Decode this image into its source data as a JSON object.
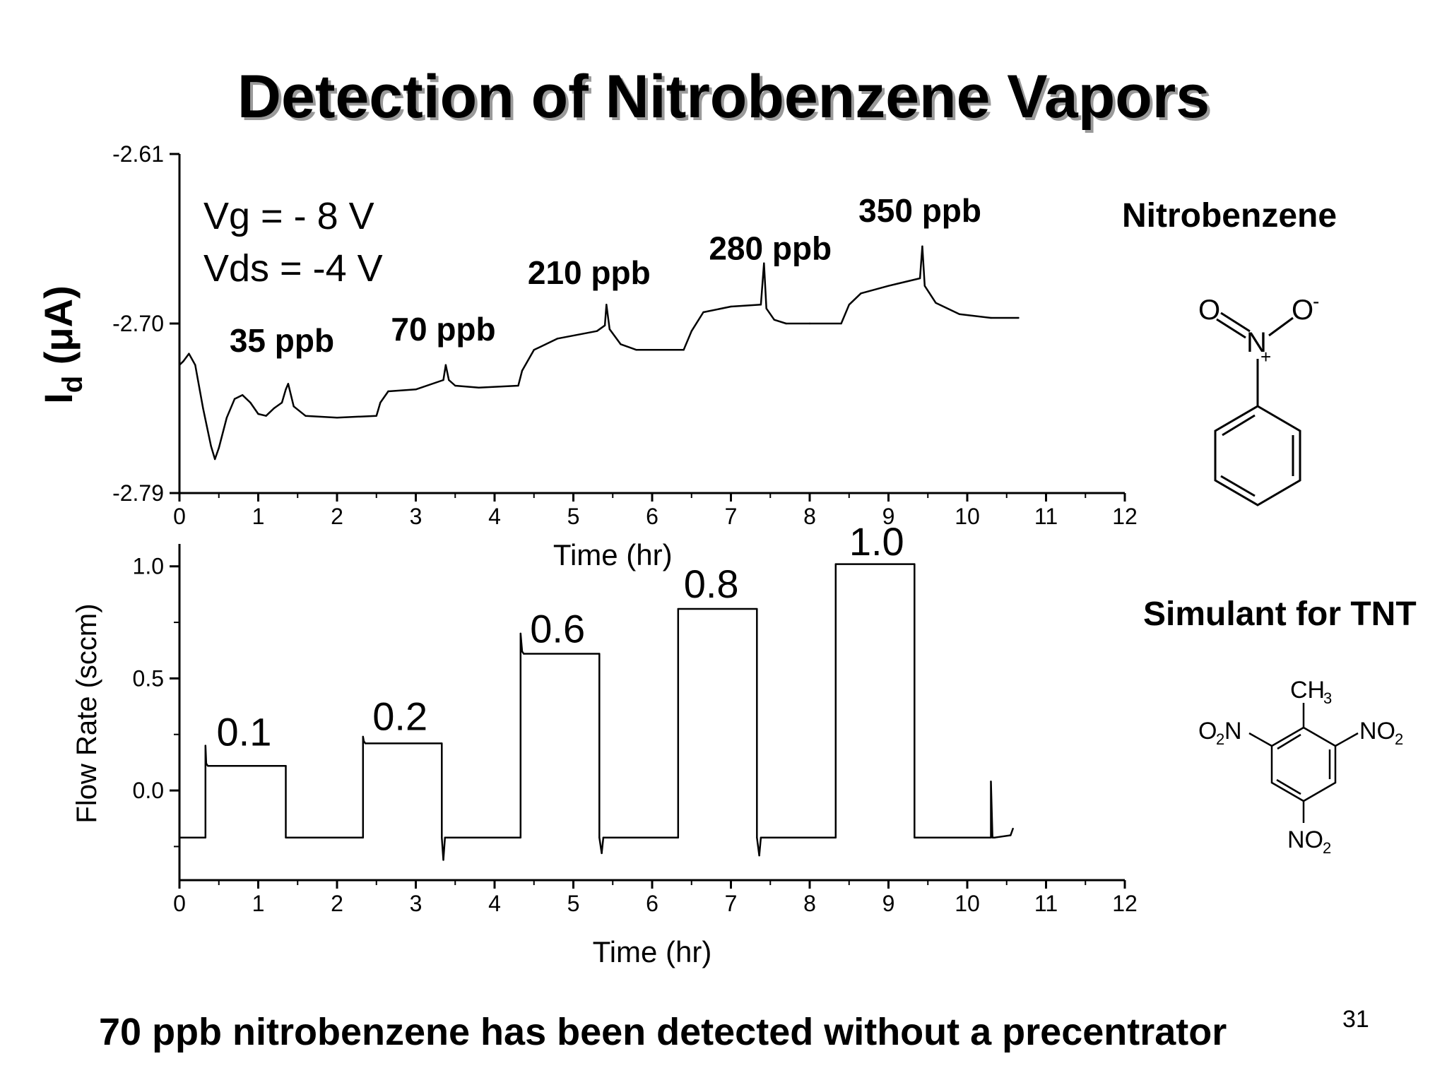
{
  "title": "Detection of Nitrobenzene Vapors",
  "footer_text": "70 ppb nitrobenzene has been detected without a precentrator",
  "page_number": "31",
  "molecules": [
    {
      "label": "Nitrobenzene",
      "icon": "nitrobenzene-structure-icon"
    },
    {
      "label": "Simulant for TNT",
      "icon": "tnt-structure-icon"
    }
  ],
  "chart_data": [
    {
      "type": "line",
      "xlabel": "Time (hr)",
      "ylabel": "I",
      "ylabel_subscript": "d",
      "ylabel_unit": "(μA)",
      "xlim": [
        0,
        12
      ],
      "ylim": [
        -2.79,
        -2.61
      ],
      "xticks": [
        "0",
        "1",
        "2",
        "3",
        "4",
        "5",
        "6",
        "7",
        "8",
        "9",
        "10",
        "11",
        "12"
      ],
      "yticks": [
        "-2.79",
        "-2.70",
        "-2.61"
      ],
      "ytick_values": [
        -2.79,
        -2.7,
        -2.61
      ],
      "conditions": [
        "Vg = - 8 V",
        "Vds = -4 V"
      ],
      "annotations": [
        {
          "text": "35 ppb",
          "x": 1.3,
          "y": -2.715
        },
        {
          "text": "70 ppb",
          "x": 3.35,
          "y": -2.709
        },
        {
          "text": "210 ppb",
          "x": 5.2,
          "y": -2.679
        },
        {
          "text": "280 ppb",
          "x": 7.5,
          "y": -2.666
        },
        {
          "text": "350 ppb",
          "x": 9.4,
          "y": -2.646
        }
      ],
      "series": [
        {
          "x": [
            0,
            0.05,
            0.12,
            0.2,
            0.3,
            0.4,
            0.45,
            0.5,
            0.6,
            0.7,
            0.8,
            0.9,
            1.0,
            1.1,
            1.2,
            1.3,
            1.35,
            1.38,
            1.45,
            1.6,
            2.0,
            2.5,
            2.55,
            2.65,
            3.0,
            3.35,
            3.38,
            3.42,
            3.5,
            3.8,
            4.3,
            4.35,
            4.5,
            4.8,
            5.3,
            5.4,
            5.42,
            5.46,
            5.6,
            5.8,
            6.0,
            6.4,
            6.5,
            6.65,
            7.0,
            7.38,
            7.42,
            7.45,
            7.55,
            7.7,
            8.0,
            8.4,
            8.5,
            8.65,
            9.0,
            9.4,
            9.43,
            9.46,
            9.6,
            9.9,
            10.3,
            10.65
          ],
          "y": [
            -2.722,
            -2.72,
            -2.716,
            -2.722,
            -2.745,
            -2.765,
            -2.772,
            -2.766,
            -2.75,
            -2.74,
            -2.738,
            -2.742,
            -2.748,
            -2.749,
            -2.745,
            -2.742,
            -2.735,
            -2.732,
            -2.744,
            -2.749,
            -2.75,
            -2.749,
            -2.742,
            -2.736,
            -2.735,
            -2.73,
            -2.722,
            -2.73,
            -2.733,
            -2.734,
            -2.733,
            -2.725,
            -2.714,
            -2.708,
            -2.704,
            -2.701,
            -2.69,
            -2.703,
            -2.711,
            -2.714,
            -2.714,
            -2.714,
            -2.704,
            -2.694,
            -2.691,
            -2.69,
            -2.668,
            -2.692,
            -2.698,
            -2.7,
            -2.7,
            -2.7,
            -2.69,
            -2.684,
            -2.68,
            -2.676,
            -2.659,
            -2.68,
            -2.689,
            -2.695,
            -2.697,
            -2.697
          ]
        }
      ]
    },
    {
      "type": "line",
      "xlabel": "Time (hr)",
      "ylabel": "Flow Rate (sccm)",
      "xlim": [
        0,
        12
      ],
      "ylim": [
        -0.4,
        1.1
      ],
      "xticks": [
        "0",
        "1",
        "2",
        "3",
        "4",
        "5",
        "6",
        "7",
        "8",
        "9",
        "10",
        "11",
        "12"
      ],
      "yticks": [
        "0.0",
        "0.5",
        "1.0"
      ],
      "ytick_values": [
        0.0,
        0.5,
        1.0
      ],
      "step_labels": [
        {
          "text": "0.1",
          "x": 0.82,
          "y": 0.2
        },
        {
          "text": "0.2",
          "x": 2.8,
          "y": 0.27
        },
        {
          "text": "0.6",
          "x": 4.8,
          "y": 0.66
        },
        {
          "text": "0.8",
          "x": 6.75,
          "y": 0.86
        },
        {
          "text": "1.0",
          "x": 8.85,
          "y": 1.05
        }
      ],
      "series": [
        {
          "x": [
            0,
            0.33,
            0.33,
            0.34,
            0.36,
            1.35,
            1.35,
            2.33,
            2.33,
            2.34,
            2.36,
            3.33,
            3.33,
            3.35,
            3.37,
            4.33,
            4.33,
            4.35,
            4.37,
            5.33,
            5.33,
            5.36,
            5.38,
            6.33,
            6.33,
            7.33,
            7.33,
            7.36,
            7.38,
            8.33,
            8.33,
            9.33,
            9.33,
            10.3,
            10.3,
            10.32,
            10.35,
            10.55,
            10.58
          ],
          "y": [
            -0.21,
            -0.21,
            0.2,
            0.12,
            0.11,
            0.11,
            -0.21,
            -0.21,
            0.24,
            0.22,
            0.21,
            0.21,
            -0.21,
            -0.31,
            -0.21,
            -0.21,
            0.7,
            0.62,
            0.61,
            0.61,
            -0.21,
            -0.28,
            -0.21,
            -0.21,
            0.81,
            0.81,
            -0.21,
            -0.29,
            -0.21,
            -0.21,
            1.01,
            1.01,
            -0.21,
            -0.21,
            0.04,
            -0.21,
            -0.21,
            -0.2,
            -0.17
          ]
        }
      ]
    }
  ]
}
